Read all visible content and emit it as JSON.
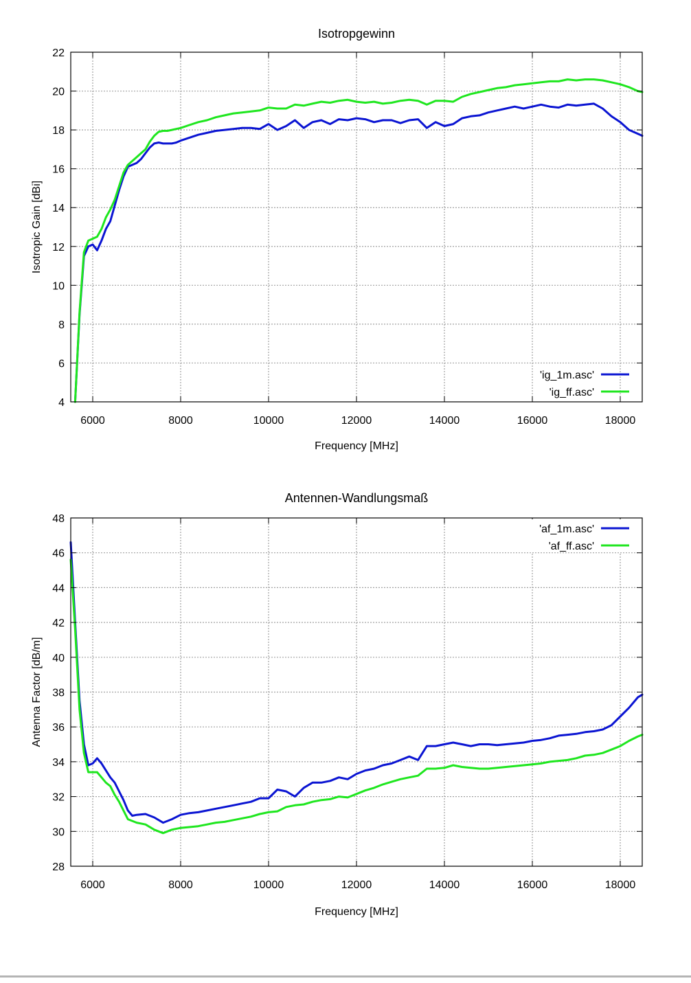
{
  "chart_data": [
    {
      "type": "line",
      "title": "Isotropgewinn",
      "xlabel": "Frequency [MHz]",
      "ylabel": "Isotropic Gain [dBi]",
      "xlim": [
        5500,
        18500
      ],
      "ylim": [
        4,
        22
      ],
      "xticks": [
        6000,
        8000,
        10000,
        12000,
        14000,
        16000,
        18000
      ],
      "yticks": [
        4,
        6,
        8,
        10,
        12,
        14,
        16,
        18,
        20,
        22
      ],
      "grid": true,
      "legend_position": "bottom-right",
      "series": [
        {
          "name": "'ig_1m.asc'",
          "color": "#0a14d2",
          "x": [
            5600,
            5700,
            5800,
            5900,
            6000,
            6100,
            6200,
            6300,
            6400,
            6500,
            6600,
            6700,
            6800,
            6900,
            7000,
            7100,
            7200,
            7300,
            7400,
            7500,
            7600,
            7700,
            7800,
            7900,
            8000,
            8200,
            8400,
            8600,
            8800,
            9000,
            9200,
            9400,
            9600,
            9800,
            10000,
            10200,
            10400,
            10600,
            10800,
            11000,
            11200,
            11400,
            11600,
            11800,
            12000,
            12200,
            12400,
            12600,
            12800,
            13000,
            13200,
            13400,
            13600,
            13800,
            14000,
            14200,
            14400,
            14600,
            14800,
            15000,
            15200,
            15400,
            15600,
            15800,
            16000,
            16200,
            16400,
            16600,
            16800,
            17000,
            17200,
            17400,
            17600,
            17800,
            18000,
            18200,
            18400,
            18500
          ],
          "y": [
            4,
            8.5,
            11.5,
            12.0,
            12.1,
            11.8,
            12.3,
            12.9,
            13.3,
            14.1,
            14.9,
            15.6,
            16.1,
            16.2,
            16.3,
            16.5,
            16.8,
            17.1,
            17.3,
            17.35,
            17.3,
            17.3,
            17.3,
            17.35,
            17.45,
            17.6,
            17.75,
            17.85,
            17.95,
            18.0,
            18.05,
            18.1,
            18.1,
            18.05,
            18.3,
            18.0,
            18.2,
            18.5,
            18.1,
            18.4,
            18.5,
            18.3,
            18.55,
            18.5,
            18.6,
            18.55,
            18.4,
            18.5,
            18.5,
            18.35,
            18.5,
            18.55,
            18.1,
            18.4,
            18.2,
            18.3,
            18.6,
            18.7,
            18.75,
            18.9,
            19.0,
            19.1,
            19.2,
            19.1,
            19.2,
            19.3,
            19.2,
            19.15,
            19.3,
            19.25,
            19.3,
            19.35,
            19.1,
            18.7,
            18.4,
            18.0,
            17.8,
            17.7
          ]
        },
        {
          "name": "'ig_ff.asc'",
          "color": "#1ee61e",
          "x": [
            5600,
            5700,
            5800,
            5900,
            6000,
            6100,
            6200,
            6300,
            6400,
            6500,
            6600,
            6700,
            6800,
            6900,
            7000,
            7100,
            7200,
            7300,
            7400,
            7500,
            7600,
            7700,
            7800,
            7900,
            8000,
            8200,
            8400,
            8600,
            8800,
            9000,
            9200,
            9400,
            9600,
            9800,
            10000,
            10200,
            10400,
            10600,
            10800,
            11000,
            11200,
            11400,
            11600,
            11800,
            12000,
            12200,
            12400,
            12600,
            12800,
            13000,
            13200,
            13400,
            13600,
            13800,
            14000,
            14200,
            14400,
            14600,
            14800,
            15000,
            15200,
            15400,
            15600,
            15800,
            16000,
            16200,
            16400,
            16600,
            16800,
            17000,
            17200,
            17400,
            17600,
            17800,
            18000,
            18200,
            18400,
            18500
          ],
          "y": [
            4,
            8.6,
            11.7,
            12.3,
            12.4,
            12.5,
            12.9,
            13.5,
            13.9,
            14.4,
            15.1,
            15.8,
            16.2,
            16.4,
            16.6,
            16.8,
            17.0,
            17.4,
            17.7,
            17.9,
            17.95,
            17.95,
            18.0,
            18.05,
            18.1,
            18.25,
            18.4,
            18.5,
            18.65,
            18.75,
            18.85,
            18.9,
            18.95,
            19.0,
            19.15,
            19.1,
            19.1,
            19.3,
            19.25,
            19.35,
            19.45,
            19.4,
            19.5,
            19.55,
            19.45,
            19.4,
            19.45,
            19.35,
            19.4,
            19.5,
            19.55,
            19.5,
            19.3,
            19.5,
            19.5,
            19.45,
            19.7,
            19.85,
            19.95,
            20.05,
            20.15,
            20.2,
            20.3,
            20.35,
            20.4,
            20.45,
            20.5,
            20.5,
            20.6,
            20.55,
            20.6,
            20.6,
            20.55,
            20.45,
            20.35,
            20.2,
            20.0,
            19.95
          ]
        }
      ]
    },
    {
      "type": "line",
      "title": "Antennen-Wandlungsmaß",
      "xlabel": "Frequency [MHz]",
      "ylabel": "Antenna Factor [dB/m]",
      "xlim": [
        5500,
        18500
      ],
      "ylim": [
        28,
        48
      ],
      "xticks": [
        6000,
        8000,
        10000,
        12000,
        14000,
        16000,
        18000
      ],
      "yticks": [
        28,
        30,
        32,
        34,
        36,
        38,
        40,
        42,
        44,
        46,
        48
      ],
      "grid": true,
      "legend_position": "top-right",
      "series": [
        {
          "name": "'af_1m.asc'",
          "color": "#0a14d2",
          "x": [
            5500,
            5600,
            5700,
            5800,
            5900,
            6000,
            6100,
            6200,
            6300,
            6400,
            6500,
            6600,
            6700,
            6800,
            6900,
            7000,
            7200,
            7400,
            7600,
            7800,
            8000,
            8200,
            8400,
            8600,
            8800,
            9000,
            9200,
            9400,
            9600,
            9800,
            10000,
            10200,
            10400,
            10600,
            10800,
            11000,
            11200,
            11400,
            11600,
            11800,
            12000,
            12200,
            12400,
            12600,
            12800,
            13000,
            13200,
            13400,
            13600,
            13800,
            14000,
            14200,
            14400,
            14600,
            14800,
            15000,
            15200,
            15400,
            15600,
            15800,
            16000,
            16200,
            16400,
            16600,
            16800,
            17000,
            17200,
            17400,
            17600,
            17800,
            18000,
            18200,
            18400,
            18500
          ],
          "y": [
            46.6,
            42.0,
            37.5,
            35.0,
            33.8,
            33.9,
            34.2,
            33.9,
            33.5,
            33.1,
            32.8,
            32.3,
            31.8,
            31.2,
            30.9,
            30.95,
            31.0,
            30.8,
            30.5,
            30.7,
            30.95,
            31.05,
            31.1,
            31.2,
            31.3,
            31.4,
            31.5,
            31.6,
            31.7,
            31.9,
            31.9,
            32.4,
            32.3,
            32.0,
            32.5,
            32.8,
            32.8,
            32.9,
            33.1,
            33.0,
            33.3,
            33.5,
            33.6,
            33.8,
            33.9,
            34.1,
            34.3,
            34.1,
            34.9,
            34.9,
            35.0,
            35.1,
            35.0,
            34.9,
            35.0,
            35.0,
            34.95,
            35.0,
            35.05,
            35.1,
            35.2,
            35.25,
            35.35,
            35.5,
            35.55,
            35.6,
            35.7,
            35.75,
            35.85,
            36.1,
            36.6,
            37.1,
            37.7,
            37.85
          ]
        },
        {
          "name": "'af_ff.asc'",
          "color": "#1ee61e",
          "x": [
            5500,
            5600,
            5700,
            5800,
            5900,
            6000,
            6100,
            6200,
            6300,
            6400,
            6500,
            6600,
            6700,
            6800,
            6900,
            7000,
            7200,
            7400,
            7600,
            7800,
            8000,
            8200,
            8400,
            8600,
            8800,
            9000,
            9200,
            9400,
            9600,
            9800,
            10000,
            10200,
            10400,
            10600,
            10800,
            11000,
            11200,
            11400,
            11600,
            11800,
            12000,
            12200,
            12400,
            12600,
            12800,
            13000,
            13200,
            13400,
            13600,
            13800,
            14000,
            14200,
            14400,
            14600,
            14800,
            15000,
            15200,
            15400,
            15600,
            15800,
            16000,
            16200,
            16400,
            16600,
            16800,
            17000,
            17200,
            17400,
            17600,
            17800,
            18000,
            18200,
            18400,
            18500
          ],
          "y": [
            45.6,
            41.6,
            37.0,
            34.5,
            33.4,
            33.4,
            33.4,
            33.1,
            32.8,
            32.6,
            32.1,
            31.7,
            31.2,
            30.7,
            30.6,
            30.5,
            30.4,
            30.1,
            29.9,
            30.1,
            30.2,
            30.25,
            30.3,
            30.4,
            30.5,
            30.55,
            30.65,
            30.75,
            30.85,
            31.0,
            31.1,
            31.15,
            31.4,
            31.5,
            31.55,
            31.7,
            31.8,
            31.85,
            32.0,
            31.95,
            32.15,
            32.35,
            32.5,
            32.7,
            32.85,
            33.0,
            33.1,
            33.2,
            33.6,
            33.6,
            33.65,
            33.8,
            33.7,
            33.65,
            33.6,
            33.6,
            33.65,
            33.7,
            33.75,
            33.8,
            33.85,
            33.9,
            34.0,
            34.05,
            34.1,
            34.2,
            34.35,
            34.4,
            34.5,
            34.7,
            34.9,
            35.2,
            35.45,
            35.55
          ]
        }
      ]
    }
  ]
}
